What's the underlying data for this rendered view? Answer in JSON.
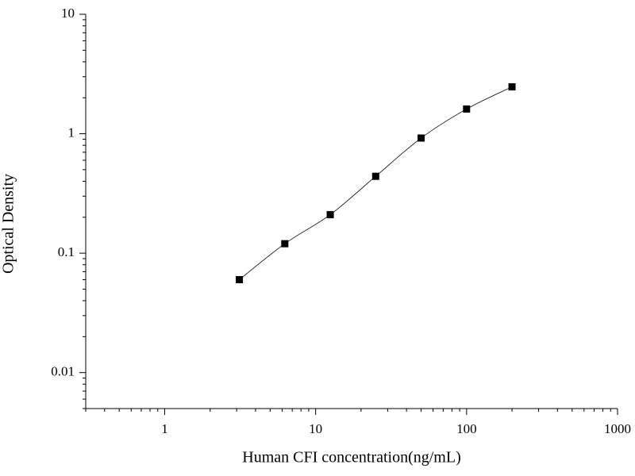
{
  "chart_data": {
    "type": "scatter",
    "x_label": "Human CFI concentration(ng/mL)",
    "y_label": "Optical Density",
    "x": [
      3.125,
      6.25,
      12.5,
      25,
      50,
      100,
      200
    ],
    "values": [
      0.06,
      0.12,
      0.21,
      0.44,
      0.92,
      1.61,
      2.47
    ],
    "color": "#000000",
    "fit_line": true,
    "xscale": "log",
    "yscale": "log",
    "xlim": [
      0.3,
      1000
    ],
    "ylim": [
      0.005,
      10
    ],
    "xticks": [
      1,
      10,
      100,
      1000
    ],
    "yticks": [
      0.01,
      0.1,
      1,
      10
    ]
  }
}
